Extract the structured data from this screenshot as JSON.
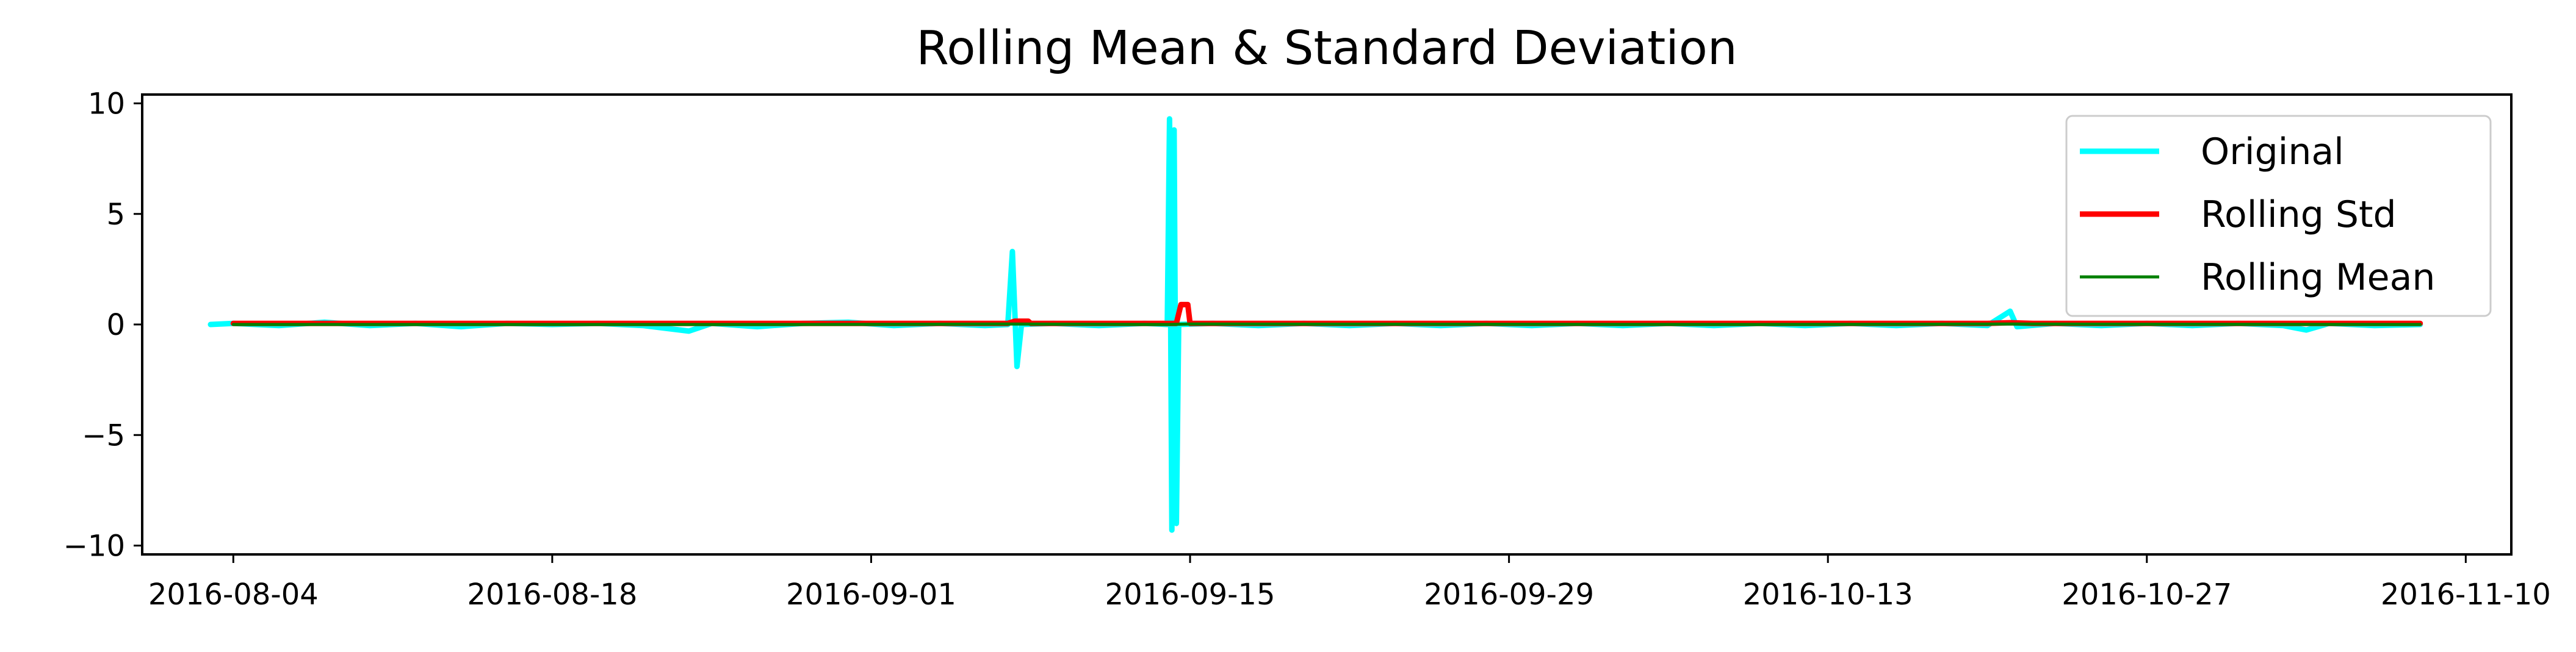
{
  "chart_data": {
    "type": "line",
    "title": "Rolling Mean & Standard Deviation",
    "xlabel": "",
    "ylabel": "",
    "x_axis_type": "date",
    "xlim": [
      "2016-07-31",
      "2016-11-12"
    ],
    "ylim": [
      -10.4,
      10.4
    ],
    "x_ticks": [
      "2016-08-04",
      "2016-08-18",
      "2016-09-01",
      "2016-09-15",
      "2016-09-29",
      "2016-10-13",
      "2016-10-27",
      "2016-11-10"
    ],
    "y_ticks": [
      10,
      5,
      0,
      -5,
      -10
    ],
    "y_tick_labels": [
      "10",
      "5",
      "0",
      "−5",
      "−10"
    ],
    "grid": false,
    "legend_position": "top-right",
    "series": [
      {
        "name": "Original",
        "color": "#00ffff",
        "line_width": "thick",
        "points": [
          [
            "2016-08-03",
            0.0
          ],
          [
            "2016-08-04",
            0.05
          ],
          [
            "2016-08-06",
            -0.05
          ],
          [
            "2016-08-08",
            0.1
          ],
          [
            "2016-08-10",
            -0.05
          ],
          [
            "2016-08-12",
            0.05
          ],
          [
            "2016-08-14",
            -0.1
          ],
          [
            "2016-08-16",
            0.05
          ],
          [
            "2016-08-18",
            0.0
          ],
          [
            "2016-08-20",
            0.05
          ],
          [
            "2016-08-22",
            -0.05
          ],
          [
            "2016-08-24",
            -0.3
          ],
          [
            "2016-08-25",
            0.05
          ],
          [
            "2016-08-27",
            -0.1
          ],
          [
            "2016-08-29",
            0.05
          ],
          [
            "2016-08-31",
            0.1
          ],
          [
            "2016-09-02",
            -0.05
          ],
          [
            "2016-09-04",
            0.05
          ],
          [
            "2016-09-06",
            -0.05
          ],
          [
            "2016-09-07",
            0.0
          ],
          [
            "2016-09-07.2",
            3.3
          ],
          [
            "2016-09-07.4",
            -1.9
          ],
          [
            "2016-09-07.6",
            0.0
          ],
          [
            "2016-09-09",
            0.05
          ],
          [
            "2016-09-11",
            -0.05
          ],
          [
            "2016-09-13",
            0.05
          ],
          [
            "2016-09-14",
            0.0
          ],
          [
            "2016-09-14.1",
            9.3
          ],
          [
            "2016-09-14.2",
            -9.3
          ],
          [
            "2016-09-14.3",
            8.8
          ],
          [
            "2016-09-14.4",
            -9.0
          ],
          [
            "2016-09-14.5",
            0.0
          ],
          [
            "2016-09-16",
            0.05
          ],
          [
            "2016-09-18",
            -0.05
          ],
          [
            "2016-09-20",
            0.05
          ],
          [
            "2016-09-22",
            -0.05
          ],
          [
            "2016-09-24",
            0.05
          ],
          [
            "2016-09-26",
            -0.05
          ],
          [
            "2016-09-28",
            0.05
          ],
          [
            "2016-09-30",
            -0.05
          ],
          [
            "2016-10-02",
            0.05
          ],
          [
            "2016-10-04",
            -0.05
          ],
          [
            "2016-10-06",
            0.05
          ],
          [
            "2016-10-08",
            -0.05
          ],
          [
            "2016-10-10",
            0.05
          ],
          [
            "2016-10-12",
            -0.05
          ],
          [
            "2016-10-14",
            0.05
          ],
          [
            "2016-10-16",
            -0.05
          ],
          [
            "2016-10-18",
            0.05
          ],
          [
            "2016-10-20",
            -0.05
          ],
          [
            "2016-10-21",
            0.6
          ],
          [
            "2016-10-21.3",
            -0.1
          ],
          [
            "2016-10-23",
            0.05
          ],
          [
            "2016-10-25",
            -0.05
          ],
          [
            "2016-10-27",
            0.05
          ],
          [
            "2016-10-29",
            -0.05
          ],
          [
            "2016-10-31",
            0.05
          ],
          [
            "2016-11-02",
            -0.05
          ],
          [
            "2016-11-03",
            -0.25
          ],
          [
            "2016-11-04",
            0.05
          ],
          [
            "2016-11-06",
            -0.05
          ],
          [
            "2016-11-08",
            0.0
          ]
        ]
      },
      {
        "name": "Rolling Std",
        "color": "#ff0000",
        "line_width": "thick",
        "points": [
          [
            "2016-08-04",
            0.05
          ],
          [
            "2016-08-20",
            0.05
          ],
          [
            "2016-09-07",
            0.05
          ],
          [
            "2016-09-07.3",
            0.15
          ],
          [
            "2016-09-07.9",
            0.15
          ],
          [
            "2016-09-08",
            0.05
          ],
          [
            "2016-09-14.4",
            0.05
          ],
          [
            "2016-09-14.6",
            0.9
          ],
          [
            "2016-09-14.9",
            0.9
          ],
          [
            "2016-09-15",
            0.05
          ],
          [
            "2016-10-01",
            0.05
          ],
          [
            "2016-10-20",
            0.05
          ],
          [
            "2016-10-21",
            0.08
          ],
          [
            "2016-10-22",
            0.05
          ],
          [
            "2016-11-08",
            0.05
          ]
        ]
      },
      {
        "name": "Rolling Mean",
        "color": "#008000",
        "line_width": "thin",
        "points": [
          [
            "2016-08-04",
            0.0
          ],
          [
            "2016-08-30",
            0.0
          ],
          [
            "2016-09-07",
            0.02
          ],
          [
            "2016-09-14",
            0.0
          ],
          [
            "2016-09-15",
            0.02
          ],
          [
            "2016-10-10",
            0.0
          ],
          [
            "2016-10-21",
            0.02
          ],
          [
            "2016-11-08",
            0.0
          ]
        ]
      }
    ]
  }
}
